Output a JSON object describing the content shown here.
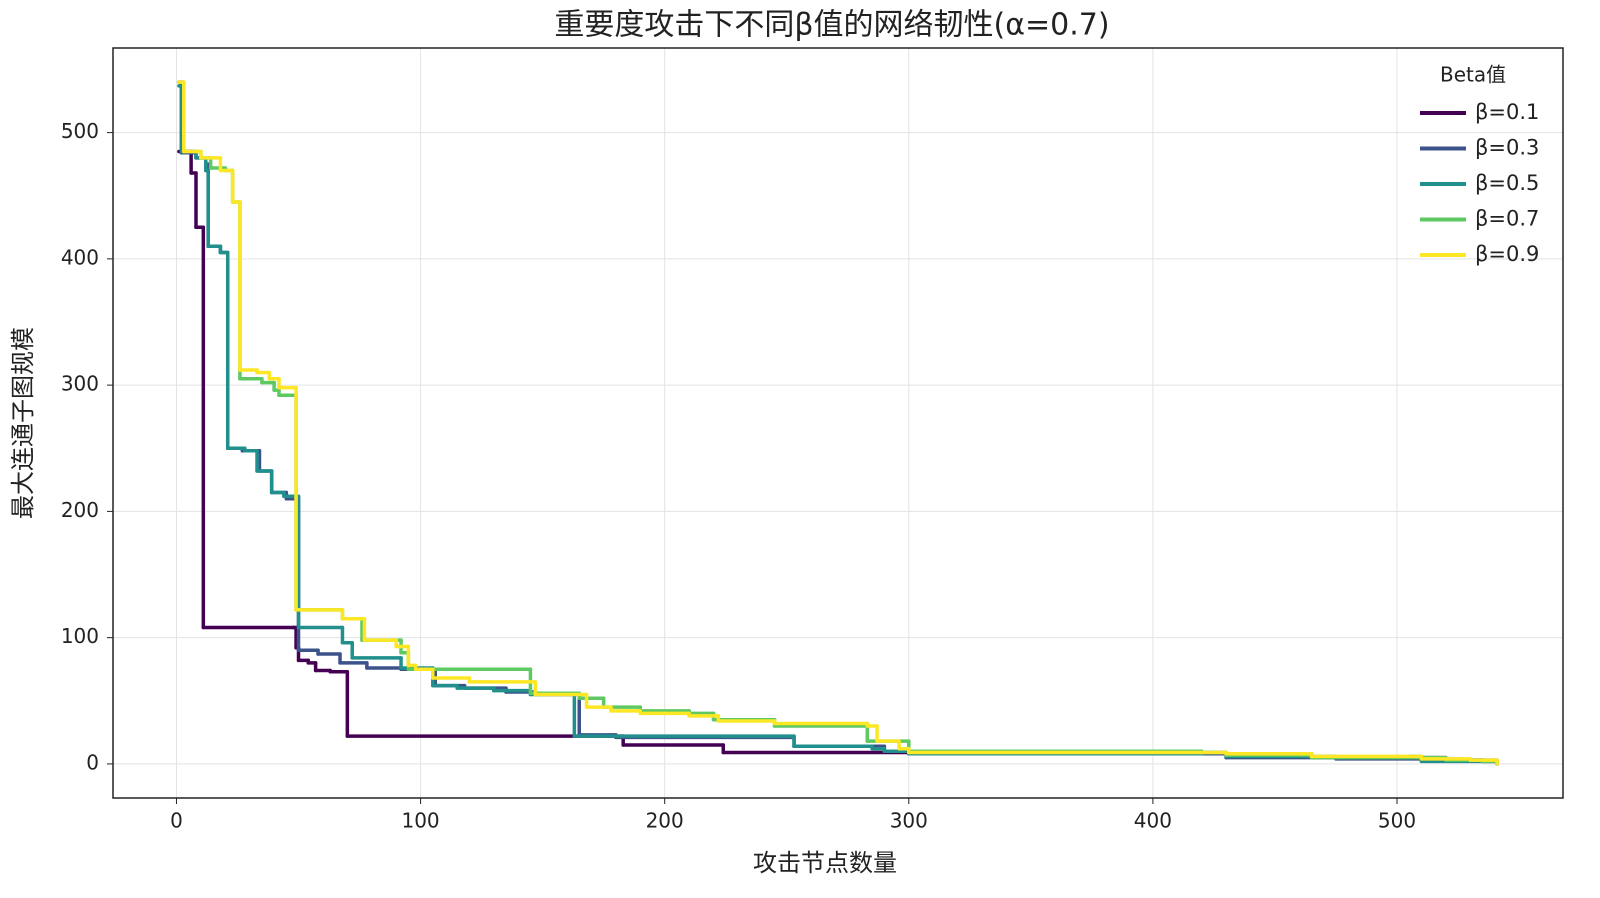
{
  "chart_data": {
    "type": "step",
    "title": "重要度攻击下不同β值的网络韧性(α=0.7)",
    "x_label": "攻击节点数量",
    "y_label": "最大连通子图规模",
    "legend_title": "Beta值",
    "legend": "top-right",
    "grid": true,
    "xlim": [
      -26,
      568
    ],
    "ylim": [
      -27,
      567
    ],
    "xticks": [
      0,
      100,
      200,
      300,
      400,
      500
    ],
    "yticks": [
      0,
      100,
      200,
      300,
      400,
      500
    ],
    "series": [
      {
        "name": "β=0.1",
        "color": "#440154",
        "x": [
          1,
          6,
          8,
          11,
          48,
          49,
          50,
          54,
          57,
          63,
          70,
          183,
          224,
          420,
          465,
          520,
          535,
          541
        ],
        "values": [
          485,
          468,
          425,
          108,
          108,
          92,
          82,
          80,
          74,
          73,
          22,
          15,
          9,
          8,
          5,
          3,
          2,
          0
        ]
      },
      {
        "name": "β=0.3",
        "color": "#3b528b",
        "x": [
          1,
          2,
          8,
          12,
          13,
          18,
          21,
          27,
          34,
          39,
          45,
          50,
          58,
          67,
          78,
          92,
          106,
          118,
          135,
          147,
          165,
          180,
          253,
          290,
          300,
          430,
          475,
          520,
          541
        ],
        "values": [
          540,
          484,
          480,
          475,
          410,
          405,
          250,
          248,
          232,
          215,
          210,
          90,
          87,
          80,
          76,
          75,
          62,
          60,
          57,
          55,
          23,
          21,
          14,
          10,
          8,
          5,
          4,
          3,
          0
        ]
      },
      {
        "name": "β=0.5",
        "color": "#21908d",
        "x": [
          1,
          2,
          8,
          12,
          13,
          18,
          21,
          28,
          33,
          39,
          44,
          50,
          68,
          72,
          92,
          105,
          115,
          130,
          145,
          163,
          253,
          285,
          290,
          300,
          420,
          430,
          475,
          505,
          510,
          541
        ],
        "values": [
          537,
          485,
          480,
          470,
          410,
          405,
          250,
          248,
          232,
          215,
          212,
          108,
          96,
          84,
          76,
          62,
          60,
          58,
          55,
          22,
          14,
          12,
          10,
          8,
          9,
          6,
          5,
          6,
          2,
          0
        ]
      },
      {
        "name": "β=0.7",
        "color": "#5ec962",
        "x": [
          1,
          3,
          10,
          14,
          20,
          23,
          26,
          35,
          40,
          42,
          49,
          68,
          76,
          92,
          95,
          145,
          165,
          175,
          190,
          210,
          220,
          245,
          283,
          300,
          420,
          430,
          465,
          520,
          535,
          541
        ],
        "values": [
          540,
          485,
          480,
          472,
          470,
          445,
          305,
          302,
          296,
          292,
          122,
          115,
          98,
          88,
          75,
          56,
          52,
          45,
          42,
          40,
          35,
          30,
          18,
          10,
          9,
          7,
          5,
          3,
          2,
          0
        ]
      },
      {
        "name": "β=0.9",
        "color": "#fde725",
        "x": [
          1,
          3,
          10,
          18,
          23,
          26,
          33,
          38,
          42,
          49,
          68,
          77,
          90,
          95,
          98,
          105,
          120,
          147,
          168,
          178,
          190,
          210,
          222,
          245,
          283,
          287,
          296,
          300,
          430,
          465,
          510,
          530,
          541
        ],
        "values": [
          540,
          485,
          480,
          470,
          445,
          312,
          310,
          305,
          298,
          122,
          115,
          98,
          93,
          78,
          75,
          68,
          65,
          55,
          45,
          42,
          40,
          38,
          34,
          32,
          30,
          18,
          12,
          9,
          8,
          6,
          4,
          3,
          0
        ]
      }
    ]
  }
}
